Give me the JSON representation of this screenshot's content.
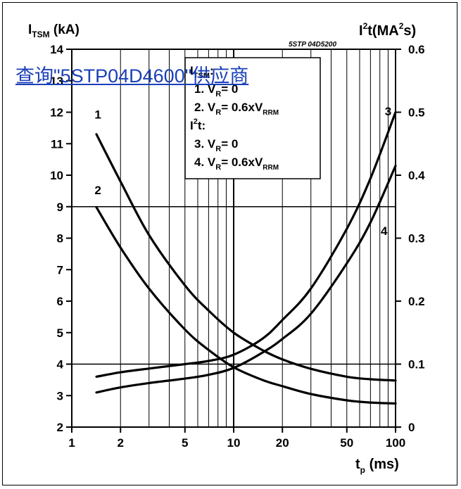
{
  "overlay_link": "查询\"5STP04D4600\"供应商",
  "chart_data": {
    "type": "line",
    "code": "5STP 04D5200",
    "x": {
      "label_main": "t",
      "label_sub": "p",
      "label_unit": "(ms)",
      "scale": "log",
      "range": [
        1,
        100
      ],
      "ticks": [
        1,
        2,
        5,
        10,
        20,
        50,
        100
      ]
    },
    "y_left": {
      "label_main": "I",
      "label_sub": "TSM",
      "label_unit": "(kA)",
      "range": [
        2,
        14
      ],
      "ticks": [
        2,
        3,
        4,
        5,
        6,
        7,
        8,
        9,
        10,
        11,
        12,
        13,
        14
      ]
    },
    "y_right": {
      "label_main": "I",
      "label_sup1": "2",
      "label_mid": "t(MA",
      "label_sup2": "2",
      "label_end": "s)",
      "range": [
        0,
        0.6
      ],
      "ticks": [
        0,
        0.1,
        0.2,
        0.3,
        0.4,
        0.5,
        0.6
      ]
    },
    "grid": true,
    "legend": {
      "lines": [
        {
          "kind": "head",
          "main": "I",
          "sub": "TSM",
          "tail": ":"
        },
        {
          "kind": "item",
          "pre": "1. V",
          "sub": "R",
          "mid": "= 0",
          "sub2": "",
          "end": ""
        },
        {
          "kind": "item",
          "pre": "2. V",
          "sub": "R",
          "mid": "= 0.6xV",
          "sub2": "RRM",
          "end": ""
        },
        {
          "kind": "head",
          "main": "I",
          "sup": "2",
          "tail": "t:"
        },
        {
          "kind": "item",
          "pre": "3. V",
          "sub": "R",
          "mid": "= 0",
          "sub2": "",
          "end": ""
        },
        {
          "kind": "item",
          "pre": "4. V",
          "sub": "R",
          "mid": "= 0.6xV",
          "sub2": "RRM",
          "end": ""
        }
      ]
    },
    "series": [
      {
        "name": "1",
        "axis": "left",
        "x": [
          1.42,
          2,
          3,
          5,
          7,
          10,
          15,
          20,
          30,
          50,
          70,
          100
        ],
        "y": [
          11.3,
          9.8,
          8.1,
          6.5,
          5.7,
          5.0,
          4.45,
          4.15,
          3.85,
          3.6,
          3.52,
          3.48
        ]
      },
      {
        "name": "2",
        "axis": "left",
        "x": [
          1.42,
          2,
          3,
          5,
          7,
          10,
          15,
          20,
          30,
          50,
          70,
          100
        ],
        "y": [
          8.98,
          7.7,
          6.4,
          5.1,
          4.45,
          3.9,
          3.5,
          3.3,
          3.05,
          2.85,
          2.78,
          2.75
        ]
      },
      {
        "name": "3",
        "axis": "right",
        "x": [
          1.42,
          2,
          3,
          5,
          7,
          10,
          15,
          20,
          30,
          50,
          70,
          100
        ],
        "y": [
          0.08,
          0.087,
          0.093,
          0.1,
          0.105,
          0.115,
          0.14,
          0.17,
          0.22,
          0.315,
          0.395,
          0.5
        ]
      },
      {
        "name": "4",
        "axis": "right",
        "x": [
          1.42,
          2,
          3,
          5,
          7,
          10,
          15,
          20,
          30,
          50,
          70,
          100
        ],
        "y": [
          0.055,
          0.063,
          0.07,
          0.077,
          0.083,
          0.094,
          0.118,
          0.14,
          0.18,
          0.26,
          0.325,
          0.415
        ]
      }
    ],
    "curve_labels": [
      {
        "text": "1",
        "x": 1.45,
        "y": 11.8,
        "axis": "left"
      },
      {
        "text": "2",
        "x": 1.45,
        "y": 9.4,
        "axis": "left"
      },
      {
        "text": "3",
        "x": 90,
        "y": 0.495,
        "axis": "right"
      },
      {
        "text": "4",
        "x": 85,
        "y": 0.305,
        "axis": "right"
      }
    ]
  }
}
